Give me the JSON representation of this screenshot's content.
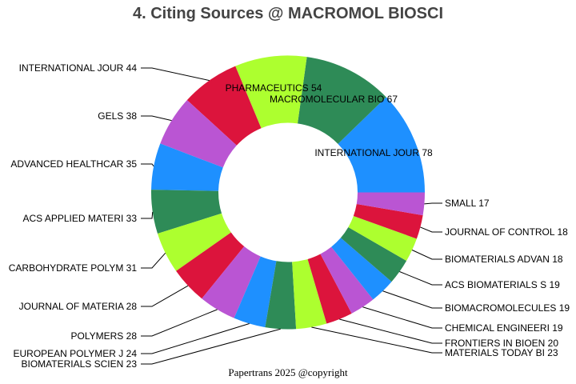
{
  "chart_data": {
    "type": "pie",
    "donut": true,
    "title": "4. Citing Sources @ MACROMOL BIOSCI",
    "direction": "counterclockwise",
    "start": "3 o'clock",
    "categories": [
      "INTERNATIONAL JOUR",
      "MACROMOLECULAR BIO",
      "PHARMACEUTICS",
      "INTERNATIONAL JOUR",
      "GELS",
      "ADVANCED HEALTHCAR",
      "ACS APPLIED MATERI",
      "CARBOHYDRATE POLYM",
      "JOURNAL OF MATERIA",
      "POLYMERS",
      "EUROPEAN POLYMER J",
      "BIOMATERIALS SCIEN",
      "MATERIALS TODAY BI",
      "FRONTIERS IN BIOEN",
      "CHEMICAL ENGINEERI",
      "BIOMACROMOLECULES",
      "ACS BIOMATERIALS S",
      "BIOMATERIALS ADVAN",
      "JOURNAL OF CONTROL",
      "SMALL"
    ],
    "values": [
      78,
      67,
      54,
      44,
      38,
      35,
      33,
      31,
      28,
      28,
      24,
      23,
      23,
      20,
      19,
      19,
      19,
      18,
      18,
      17
    ],
    "labels": [
      "INTERNATIONAL JOUR 78",
      "MACROMOLECULAR BIO 67",
      "PHARMACEUTICS 54",
      "INTERNATIONAL JOUR 44",
      "GELS 38",
      "ADVANCED HEALTHCAR 35",
      "ACS APPLIED MATERI 33",
      "CARBOHYDRATE POLYM 31",
      "JOURNAL OF MATERIA 28",
      "POLYMERS 28",
      "EUROPEAN POLYMER J 24",
      "BIOMATERIALS SCIEN 23",
      "MATERIALS TODAY BI 23",
      "FRONTIERS IN BIOEN 20",
      "CHEMICAL ENGINEERI 19",
      "BIOMACROMOLECULES 19",
      "ACS BIOMATERIALS S 19",
      "BIOMATERIALS ADVAN 18",
      "JOURNAL OF CONTROL 18",
      "SMALL 17"
    ],
    "colors": [
      "#1E90FF",
      "#2E8B57",
      "#ADFF2F",
      "#DC143C",
      "#BA55D3"
    ]
  },
  "footer": "Papertrans 2025 @copyright"
}
